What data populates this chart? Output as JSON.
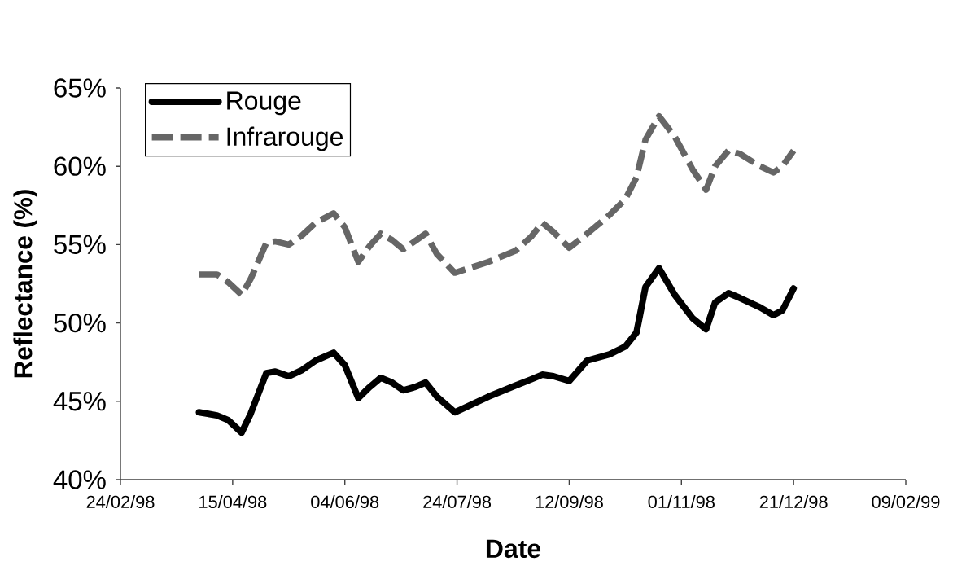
{
  "chart_data": {
    "type": "line",
    "xlabel": "Date",
    "ylabel": "Reflectance (%)",
    "legend": "top left",
    "marker": "none",
    "x": [
      "1998-03-31",
      "1998-04-08",
      "1998-04-13",
      "1998-04-19",
      "1998-04-23",
      "1998-04-30",
      "1998-05-04",
      "1998-05-10",
      "1998-05-16",
      "1998-05-22",
      "1998-05-30",
      "1998-06-04",
      "1998-06-10",
      "1998-06-15",
      "1998-06-20",
      "1998-06-25",
      "1998-06-30",
      "1998-07-05",
      "1998-07-10",
      "1998-07-15",
      "1998-07-23",
      "1998-08-07",
      "1998-08-19",
      "1998-08-26",
      "1998-08-31",
      "1998-09-05",
      "1998-09-12",
      "1998-09-20",
      "1998-09-30",
      "1998-10-07",
      "1998-10-12",
      "1998-10-16",
      "1998-10-22",
      "1998-10-29",
      "1998-11-06",
      "1998-11-12",
      "1998-11-16",
      "1998-11-22",
      "1998-11-27",
      "1998-12-06",
      "1998-12-12",
      "1998-12-16",
      "1998-12-21"
    ],
    "series": [
      {
        "name": "Rouge",
        "color": "#000000",
        "line_style": "solid",
        "values": [
          44.3,
          44.1,
          43.8,
          43.0,
          44.2,
          46.8,
          46.9,
          46.6,
          47.0,
          47.6,
          48.1,
          47.3,
          45.2,
          45.9,
          46.5,
          46.2,
          45.7,
          45.9,
          46.2,
          45.3,
          44.3,
          45.3,
          46.0,
          46.4,
          46.7,
          46.6,
          46.3,
          47.6,
          48.0,
          48.5,
          49.4,
          52.3,
          53.5,
          51.8,
          50.3,
          49.6,
          51.3,
          51.9,
          51.6,
          51.0,
          50.5,
          50.8,
          52.2
        ]
      },
      {
        "name": "Infrarouge",
        "color": "#666666",
        "line_style": "dashed",
        "values": [
          53.1,
          53.1,
          52.6,
          51.8,
          52.8,
          55.1,
          55.2,
          55.0,
          55.6,
          56.4,
          57.0,
          56.1,
          53.9,
          54.9,
          55.7,
          55.3,
          54.7,
          55.2,
          55.7,
          54.4,
          53.2,
          53.9,
          54.6,
          55.5,
          56.4,
          55.8,
          54.8,
          55.7,
          56.9,
          57.9,
          59.3,
          61.7,
          63.2,
          61.9,
          59.8,
          58.5,
          60.0,
          61.0,
          60.8,
          60.0,
          59.6,
          60.0,
          61.0
        ]
      }
    ],
    "xlim": [
      "1998-02-24",
      "1999-02-09"
    ],
    "xticks": [
      {
        "value": "1998-02-24",
        "label": "24/02/98"
      },
      {
        "value": "1998-04-15",
        "label": "15/04/98"
      },
      {
        "value": "1998-06-04",
        "label": "04/06/98"
      },
      {
        "value": "1998-07-24",
        "label": "24/07/98"
      },
      {
        "value": "1998-09-12",
        "label": "12/09/98"
      },
      {
        "value": "1998-11-01",
        "label": "01/11/98"
      },
      {
        "value": "1998-12-21",
        "label": "21/12/98"
      },
      {
        "value": "1999-02-09",
        "label": "09/02/99"
      }
    ],
    "ylim": [
      40,
      65
    ],
    "yticks": [
      {
        "value": 40,
        "label": "40%"
      },
      {
        "value": 45,
        "label": "45%"
      },
      {
        "value": 50,
        "label": "50%"
      },
      {
        "value": 55,
        "label": "55%"
      },
      {
        "value": 60,
        "label": "60%"
      },
      {
        "value": 65,
        "label": "65%"
      }
    ]
  }
}
